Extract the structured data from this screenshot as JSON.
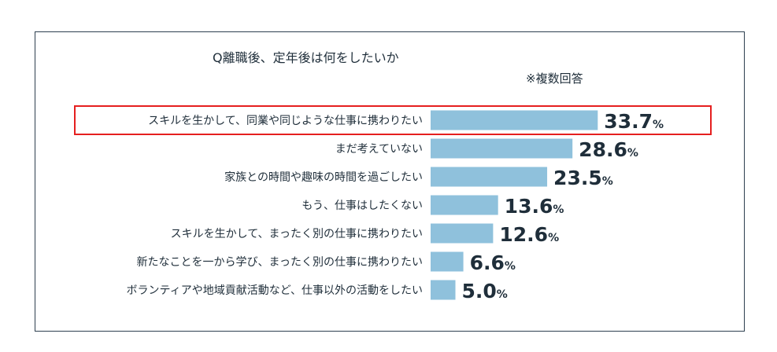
{
  "title": "Q離職後、定年後は何をしたいか",
  "note": "※複数回答",
  "colors": {
    "bar": "#8fc1dc",
    "highlight": "#e51f1f",
    "text": "#1f2e3a",
    "border": "#2e3f4f"
  },
  "chart_data": {
    "type": "bar",
    "orientation": "horizontal",
    "unit": "%",
    "categories": [
      "スキルを生かして、同業や同じような仕事に携わりたい",
      "まだ考えていない",
      "家族との時間や趣味の時間を過ごしたい",
      "もう、仕事はしたくない",
      "スキルを生かして、まったく別の仕事に携わりたい",
      "新たなことを一から学び、まったく別の仕事に携わりたい",
      "ボランティアや地域貢献活動など、仕事以外の活動をしたい"
    ],
    "values": [
      33.7,
      28.6,
      23.5,
      13.6,
      12.6,
      6.6,
      5.0
    ],
    "value_labels": [
      "33.7",
      "28.6",
      "23.5",
      "13.6",
      "12.6",
      "6.6",
      "5.0"
    ],
    "highlighted_index": 0,
    "grid": false
  }
}
